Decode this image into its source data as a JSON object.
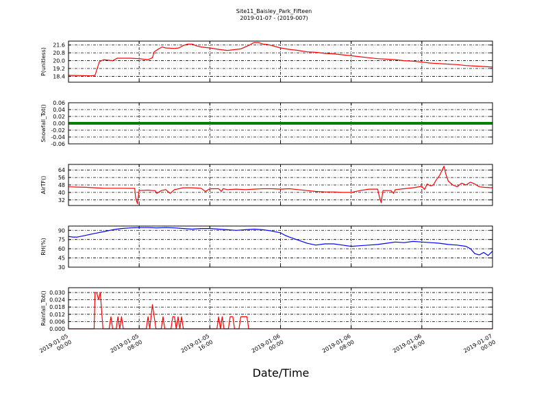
{
  "title": "Site11_Baisley_Park_Fifteen",
  "subtitle": "2019-01-07 - (2019-007)",
  "xlabel": "Date/Time",
  "chart_data": {
    "type": "line",
    "x_range_hours": [
      0,
      48
    ],
    "x_ticks": [
      {
        "h": 0,
        "line1": "2019-01-05",
        "line2": "00:00"
      },
      {
        "h": 8,
        "line1": "2019-01-05",
        "line2": "08:00"
      },
      {
        "h": 16,
        "line1": "2019-01-05",
        "line2": "16:00"
      },
      {
        "h": 24,
        "line1": "2019-01-06",
        "line2": "00:00"
      },
      {
        "h": 32,
        "line1": "2019-01-06",
        "line2": "08:00"
      },
      {
        "h": 40,
        "line1": "2019-01-06",
        "line2": "16:00"
      },
      {
        "h": 48,
        "line1": "2019-01-07",
        "line2": "00:00"
      }
    ],
    "panels": [
      {
        "ylabel": "P(unitless)",
        "ylim": [
          17.8,
          22.0
        ],
        "yticks": [
          18.4,
          19.2,
          20.0,
          20.8,
          21.6
        ],
        "ytick_labels": [
          "18.4",
          "19.2",
          "20.0",
          "20.8",
          "21.6"
        ],
        "color": "#ff0000",
        "style": "line",
        "points": [
          [
            0,
            18.5
          ],
          [
            1.5,
            18.48
          ],
          [
            2.5,
            18.45
          ],
          [
            3,
            18.5
          ],
          [
            3.5,
            19.9
          ],
          [
            4,
            20.1
          ],
          [
            5,
            20.0
          ],
          [
            5.5,
            20.25
          ],
          [
            7,
            20.25
          ],
          [
            8,
            20.2
          ],
          [
            9,
            20.1
          ],
          [
            9.5,
            20.3
          ],
          [
            9.7,
            20.9
          ],
          [
            10.2,
            21.2
          ],
          [
            10.6,
            21.4
          ],
          [
            11,
            21.3
          ],
          [
            12,
            21.25
          ],
          [
            12.5,
            21.3
          ],
          [
            13,
            21.55
          ],
          [
            13.5,
            21.7
          ],
          [
            14,
            21.7
          ],
          [
            14.5,
            21.5
          ],
          [
            15,
            21.4
          ],
          [
            16,
            21.3
          ],
          [
            17,
            21.15
          ],
          [
            18,
            21.05
          ],
          [
            18.5,
            21.1
          ],
          [
            19,
            21.15
          ],
          [
            19.5,
            21.2
          ],
          [
            20,
            21.4
          ],
          [
            20.5,
            21.6
          ],
          [
            21,
            21.85
          ],
          [
            21.5,
            21.85
          ],
          [
            22,
            21.7
          ],
          [
            22.5,
            21.65
          ],
          [
            23,
            21.55
          ],
          [
            24,
            21.3
          ],
          [
            25,
            21.15
          ],
          [
            26,
            21.05
          ],
          [
            27,
            20.9
          ],
          [
            28,
            20.85
          ],
          [
            29,
            20.75
          ],
          [
            30,
            20.7
          ],
          [
            31,
            20.6
          ],
          [
            32,
            20.5
          ],
          [
            33,
            20.4
          ],
          [
            34,
            20.3
          ],
          [
            35,
            20.2
          ],
          [
            36,
            20.15
          ],
          [
            37,
            20.1
          ],
          [
            38,
            20.0
          ],
          [
            39,
            19.95
          ],
          [
            40,
            19.85
          ],
          [
            41,
            19.75
          ],
          [
            42,
            19.7
          ],
          [
            43,
            19.65
          ],
          [
            44,
            19.6
          ],
          [
            45,
            19.5
          ],
          [
            46,
            19.45
          ],
          [
            47,
            19.4
          ],
          [
            48,
            19.35
          ]
        ]
      },
      {
        "ylabel": "Snowfall_Tot()",
        "ylim": [
          -0.06,
          0.06
        ],
        "yticks": [
          -0.06,
          -0.04,
          -0.02,
          0.0,
          0.02,
          0.04,
          0.06
        ],
        "ytick_labels": [
          "-0.06",
          "-0.04",
          "-0.02",
          "0.00",
          "0.02",
          "0.04",
          "0.06"
        ],
        "color": "#008000",
        "style": "thick",
        "points": [
          [
            0,
            0
          ],
          [
            48,
            0
          ]
        ]
      },
      {
        "ylabel": "AirTF()",
        "ylim": [
          26,
          70
        ],
        "yticks": [
          32,
          40,
          48,
          56,
          64
        ],
        "ytick_labels": [
          "32",
          "40",
          "48",
          "56",
          "64"
        ],
        "color": "#ff0000",
        "style": "line",
        "points": [
          [
            0,
            46
          ],
          [
            1,
            45.7
          ],
          [
            2,
            45.5
          ],
          [
            3,
            45
          ],
          [
            4,
            44.5
          ],
          [
            5,
            44.5
          ],
          [
            6,
            44.5
          ],
          [
            7,
            44.3
          ],
          [
            7.5,
            44.3
          ],
          [
            7.6,
            34
          ],
          [
            7.8,
            28
          ],
          [
            8,
            42
          ],
          [
            9,
            42.5
          ],
          [
            9.5,
            42
          ],
          [
            9.8,
            42
          ],
          [
            10,
            39
          ],
          [
            10.5,
            42
          ],
          [
            11,
            43
          ],
          [
            11.5,
            39
          ],
          [
            12,
            43
          ],
          [
            12.5,
            44
          ],
          [
            13,
            45
          ],
          [
            14,
            45
          ],
          [
            15,
            44.5
          ],
          [
            15.5,
            41
          ],
          [
            16,
            44
          ],
          [
            17,
            44
          ],
          [
            17.3,
            41
          ],
          [
            17.5,
            44
          ],
          [
            18,
            43
          ],
          [
            19,
            43.5
          ],
          [
            20,
            43
          ],
          [
            21,
            43.5
          ],
          [
            22,
            44
          ],
          [
            23,
            44
          ],
          [
            24,
            43.5
          ],
          [
            25,
            44
          ],
          [
            26,
            43
          ],
          [
            27,
            42
          ],
          [
            28,
            41
          ],
          [
            29,
            40.5
          ],
          [
            30,
            40.5
          ],
          [
            31,
            40
          ],
          [
            32,
            40
          ],
          [
            33,
            42
          ],
          [
            34,
            43.5
          ],
          [
            35,
            43.5
          ],
          [
            35.2,
            35
          ],
          [
            35.4,
            29
          ],
          [
            35.6,
            42
          ],
          [
            36,
            42
          ],
          [
            36.5,
            42
          ],
          [
            36.8,
            39
          ],
          [
            37,
            43
          ],
          [
            38,
            44
          ],
          [
            39,
            45
          ],
          [
            40,
            46.5
          ],
          [
            40.3,
            43
          ],
          [
            40.6,
            49
          ],
          [
            41,
            47
          ],
          [
            41.3,
            48
          ],
          [
            41.6,
            53
          ],
          [
            42,
            58
          ],
          [
            42.3,
            64
          ],
          [
            42.5,
            68
          ],
          [
            42.7,
            60
          ],
          [
            43,
            52
          ],
          [
            43.5,
            48
          ],
          [
            44,
            46
          ],
          [
            44.5,
            50
          ],
          [
            45,
            48
          ],
          [
            45.5,
            51
          ],
          [
            46,
            49
          ],
          [
            46.5,
            46
          ],
          [
            47,
            45.5
          ],
          [
            48,
            45
          ]
        ]
      },
      {
        "ylabel": "RH(%)",
        "ylim": [
          30,
          97
        ],
        "yticks": [
          30,
          45,
          60,
          75,
          90
        ],
        "ytick_labels": [
          "30",
          "45",
          "60",
          "75",
          "90"
        ],
        "color": "#0000ff",
        "style": "line",
        "points": [
          [
            0,
            80
          ],
          [
            0.5,
            79
          ],
          [
            1,
            79
          ],
          [
            2,
            82
          ],
          [
            3,
            85
          ],
          [
            4,
            88
          ],
          [
            5,
            91
          ],
          [
            6,
            93
          ],
          [
            7,
            94
          ],
          [
            8,
            94.5
          ],
          [
            9,
            94.5
          ],
          [
            10,
            94
          ],
          [
            11,
            94.5
          ],
          [
            12,
            94
          ],
          [
            13,
            93
          ],
          [
            14,
            92
          ],
          [
            15,
            93
          ],
          [
            16,
            93
          ],
          [
            17,
            92
          ],
          [
            18,
            91
          ],
          [
            19,
            90
          ],
          [
            20,
            91
          ],
          [
            21,
            92
          ],
          [
            22,
            91
          ],
          [
            23,
            89
          ],
          [
            24,
            86
          ],
          [
            24.5,
            82
          ],
          [
            25,
            79
          ],
          [
            26,
            74
          ],
          [
            27,
            69
          ],
          [
            28,
            66
          ],
          [
            29,
            68
          ],
          [
            30,
            68
          ],
          [
            31,
            66
          ],
          [
            32,
            64
          ],
          [
            33,
            65
          ],
          [
            34,
            66
          ],
          [
            35,
            67
          ],
          [
            36,
            69
          ],
          [
            37,
            71
          ],
          [
            38,
            70
          ],
          [
            39,
            72
          ],
          [
            40,
            71
          ],
          [
            41,
            70
          ],
          [
            42,
            69
          ],
          [
            43,
            67
          ],
          [
            44,
            66
          ],
          [
            45,
            64
          ],
          [
            45.5,
            60
          ],
          [
            46,
            52
          ],
          [
            46.5,
            50
          ],
          [
            47,
            54
          ],
          [
            47.5,
            49
          ],
          [
            48,
            56
          ]
        ]
      },
      {
        "ylabel": "Rainfall_Tot()",
        "ylim": [
          0,
          0.034
        ],
        "yticks": [
          0.0,
          0.006,
          0.012,
          0.018,
          0.024,
          0.03
        ],
        "ytick_labels": [
          "0.000",
          "0.006",
          "0.012",
          "0.018",
          "0.024",
          "0.030"
        ],
        "color": "#ff0000",
        "style": "line",
        "points": [
          [
            0,
            0
          ],
          [
            2.9,
            0
          ],
          [
            3.0,
            0.03
          ],
          [
            3.2,
            0.03
          ],
          [
            3.4,
            0.024
          ],
          [
            3.6,
            0.03
          ],
          [
            3.9,
            0
          ],
          [
            4.6,
            0
          ],
          [
            4.8,
            0.01
          ],
          [
            5.0,
            0
          ],
          [
            5.4,
            0
          ],
          [
            5.6,
            0.01
          ],
          [
            5.8,
            0
          ],
          [
            6.0,
            0.01
          ],
          [
            6.2,
            0
          ],
          [
            8.8,
            0
          ],
          [
            9.0,
            0.01
          ],
          [
            9.2,
            0
          ],
          [
            9.5,
            0.02
          ],
          [
            9.7,
            0.01
          ],
          [
            9.9,
            0
          ],
          [
            10.5,
            0
          ],
          [
            10.7,
            0.01
          ],
          [
            10.9,
            0
          ],
          [
            11.6,
            0
          ],
          [
            11.8,
            0.01
          ],
          [
            12.0,
            0.01
          ],
          [
            12.2,
            0
          ],
          [
            12.4,
            0.01
          ],
          [
            12.6,
            0
          ],
          [
            12.8,
            0.01
          ],
          [
            13.0,
            0
          ],
          [
            16.8,
            0
          ],
          [
            17.0,
            0.01
          ],
          [
            17.2,
            0
          ],
          [
            17.4,
            0.01
          ],
          [
            17.6,
            0
          ],
          [
            18.1,
            0
          ],
          [
            18.3,
            0.01
          ],
          [
            18.6,
            0.01
          ],
          [
            18.8,
            0
          ],
          [
            19.3,
            0
          ],
          [
            19.5,
            0.01
          ],
          [
            20.2,
            0.01
          ],
          [
            20.4,
            0
          ],
          [
            48,
            0
          ]
        ]
      }
    ]
  }
}
